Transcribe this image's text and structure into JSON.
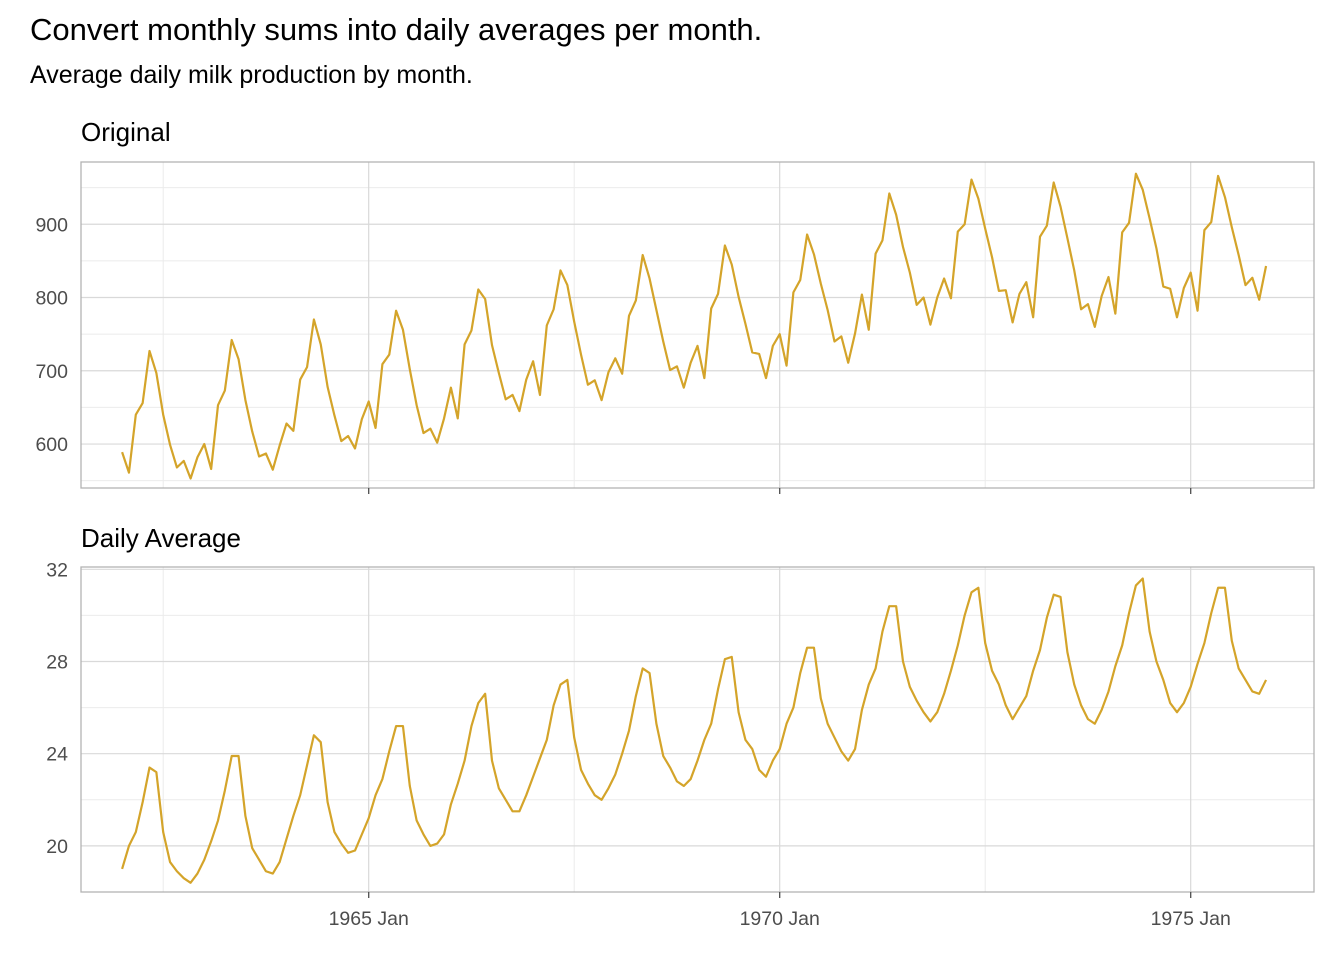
{
  "title": "Convert monthly sums into daily averages per month.",
  "subtitle": "Average daily milk production by month.",
  "line_color": "#D4A42A",
  "chart_data": [
    {
      "type": "line",
      "facet_title": "Original",
      "x_start": "1962 Jan",
      "x_end": "1975 Dec",
      "x_frequency": "monthly",
      "xlim": [
        "1961 Jul",
        "1976 Jul"
      ],
      "ylim": [
        540,
        985
      ],
      "y_ticks": [
        600,
        700,
        800,
        900
      ],
      "x_ticks": [
        "1965 Jan",
        "1970 Jan",
        "1975 Jan"
      ],
      "grid": true,
      "series": [
        {
          "values": [
            589,
            561,
            640,
            656,
            727,
            697,
            640,
            599,
            568,
            577,
            553,
            582,
            600,
            566,
            653,
            673,
            742,
            716,
            660,
            617,
            583,
            587,
            565,
            598,
            628,
            618,
            688,
            705,
            770,
            736,
            678,
            639,
            604,
            611,
            594,
            634,
            658,
            622,
            709,
            722,
            782,
            756,
            702,
            653,
            615,
            621,
            602,
            635,
            677,
            635,
            736,
            755,
            811,
            798,
            735,
            697,
            661,
            667,
            645,
            688,
            713,
            667,
            762,
            784,
            837,
            817,
            767,
            722,
            681,
            687,
            660,
            698,
            717,
            696,
            775,
            796,
            858,
            826,
            783,
            740,
            701,
            706,
            677,
            711,
            734,
            690,
            785,
            805,
            871,
            845,
            801,
            764,
            725,
            723,
            690,
            734,
            750,
            707,
            807,
            824,
            886,
            859,
            819,
            783,
            740,
            747,
            711,
            751,
            804,
            756,
            860,
            878,
            942,
            913,
            869,
            834,
            790,
            800,
            763,
            800,
            826,
            799,
            890,
            900,
            961,
            935,
            894,
            855,
            809,
            810,
            766,
            805,
            821,
            773,
            883,
            898,
            957,
            924,
            881,
            837,
            784,
            791,
            760,
            802,
            828,
            778,
            889,
            902,
            969,
            947,
            908,
            867,
            815,
            812,
            773,
            813,
            834,
            782,
            892,
            903,
            966,
            937,
            896,
            858,
            817,
            827,
            797,
            843
          ]
        }
      ]
    },
    {
      "type": "line",
      "facet_title": "Daily Average",
      "x_start": "1962 Jan",
      "x_end": "1975 Dec",
      "x_frequency": "monthly",
      "xlim": [
        "1961 Jul",
        "1976 Jul"
      ],
      "ylim": [
        18.0,
        32.1
      ],
      "y_ticks": [
        20,
        24,
        28,
        32
      ],
      "x_ticks": [
        "1965 Jan",
        "1970 Jan",
        "1975 Jan"
      ],
      "grid": true,
      "series": [
        {
          "values": [
            19.0,
            20.0,
            20.6,
            21.9,
            23.4,
            23.2,
            20.6,
            19.3,
            18.9,
            18.6,
            18.4,
            18.8,
            19.4,
            20.2,
            21.1,
            22.4,
            23.9,
            23.9,
            21.3,
            19.9,
            19.4,
            18.9,
            18.8,
            19.3,
            20.3,
            21.3,
            22.2,
            23.5,
            24.8,
            24.5,
            21.9,
            20.6,
            20.1,
            19.7,
            19.8,
            20.5,
            21.2,
            22.2,
            22.9,
            24.1,
            25.2,
            25.2,
            22.6,
            21.1,
            20.5,
            20.0,
            20.1,
            20.5,
            21.8,
            22.7,
            23.7,
            25.2,
            26.2,
            26.6,
            23.7,
            22.5,
            22.0,
            21.5,
            21.5,
            22.2,
            23.0,
            23.8,
            24.6,
            26.1,
            27.0,
            27.2,
            24.7,
            23.3,
            22.7,
            22.2,
            22.0,
            22.5,
            23.1,
            24.0,
            25.0,
            26.5,
            27.7,
            27.5,
            25.3,
            23.9,
            23.4,
            22.8,
            22.6,
            22.9,
            23.7,
            24.6,
            25.3,
            26.8,
            28.1,
            28.2,
            25.8,
            24.6,
            24.2,
            23.3,
            23.0,
            23.7,
            24.2,
            25.3,
            26.0,
            27.5,
            28.6,
            28.6,
            26.4,
            25.3,
            24.7,
            24.1,
            23.7,
            24.2,
            25.9,
            27.0,
            27.7,
            29.3,
            30.4,
            30.4,
            28.0,
            26.9,
            26.3,
            25.8,
            25.4,
            25.8,
            26.6,
            27.6,
            28.7,
            30.0,
            31.0,
            31.2,
            28.8,
            27.6,
            27.0,
            26.1,
            25.5,
            26.0,
            26.5,
            27.6,
            28.5,
            29.9,
            30.9,
            30.8,
            28.4,
            27.0,
            26.1,
            25.5,
            25.3,
            25.9,
            26.7,
            27.8,
            28.7,
            30.1,
            31.3,
            31.6,
            29.3,
            28.0,
            27.2,
            26.2,
            25.8,
            26.2,
            26.9,
            27.9,
            28.8,
            30.1,
            31.2,
            31.2,
            28.9,
            27.7,
            27.2,
            26.7,
            26.6,
            27.2
          ]
        }
      ]
    }
  ]
}
